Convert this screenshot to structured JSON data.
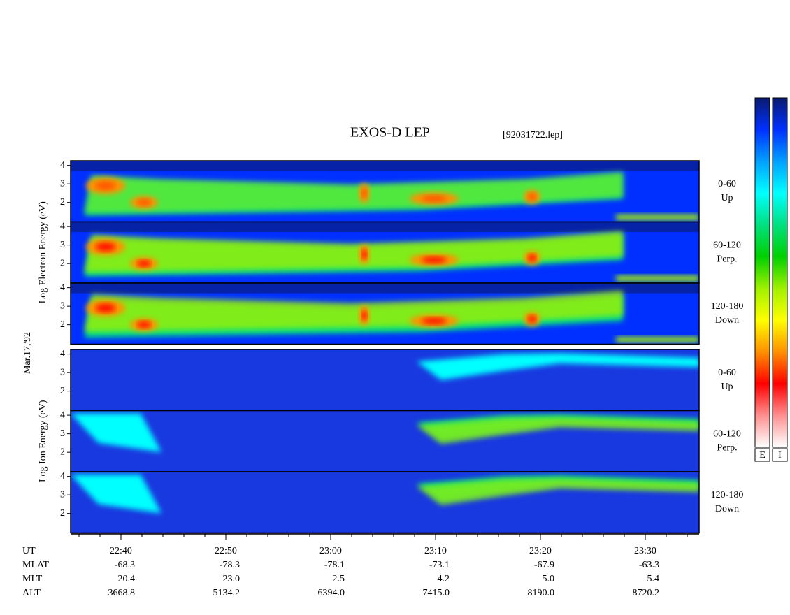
{
  "chart_data": {
    "type": "spectrogram",
    "title": "EXOS-D LEP",
    "subtitle": "[92031722.lep]",
    "date_label": "Mar.17,'92",
    "xlim": [
      "22:35:12",
      "23:35:08"
    ],
    "xticks": [
      "22:40",
      "22:50",
      "23:00",
      "23:10",
      "23:20",
      "23:30"
    ],
    "ut_label": "UT",
    "orbit_rows": [
      {
        "name": "MLAT",
        "values": [
          "-68.3",
          "-78.3",
          "-78.1",
          "-73.1",
          "-67.9",
          "-63.3"
        ]
      },
      {
        "name": "MLT",
        "values": [
          "20.4",
          "23.0",
          "2.5",
          "4.2",
          "5.0",
          "5.4"
        ]
      },
      {
        "name": "ALT",
        "values": [
          "3668.8",
          "5134.2",
          "6394.0",
          "7415.0",
          "8190.0",
          "8720.2"
        ]
      }
    ],
    "groups": [
      {
        "ylabel": "Log Electron Energy (eV)",
        "ylim": [
          0.95,
          4.25
        ],
        "yticks": [
          2,
          3,
          4
        ],
        "panels": [
          {
            "angle": "0-60",
            "direction": "Up"
          },
          {
            "angle": "60-120",
            "direction": "Perp."
          },
          {
            "angle": "120-180",
            "direction": "Down"
          }
        ]
      },
      {
        "ylabel": "Log Ion Energy (eV)",
        "ylim": [
          0.95,
          4.25
        ],
        "yticks": [
          2,
          3,
          4
        ],
        "panels": [
          {
            "angle": "0-60",
            "direction": "Up"
          },
          {
            "angle": "60-120",
            "direction": "Perp."
          },
          {
            "angle": "120-180",
            "direction": "Down"
          }
        ]
      }
    ],
    "colorbars": [
      {
        "label": "E"
      },
      {
        "label": "I"
      }
    ],
    "colorscale": [
      "#0a1a6e",
      "#0030ff",
      "#00a0ff",
      "#00ffff",
      "#00e080",
      "#00d000",
      "#a0f000",
      "#ffff00",
      "#ff9000",
      "#ff0000",
      "#ff9090",
      "#ffffff"
    ]
  }
}
